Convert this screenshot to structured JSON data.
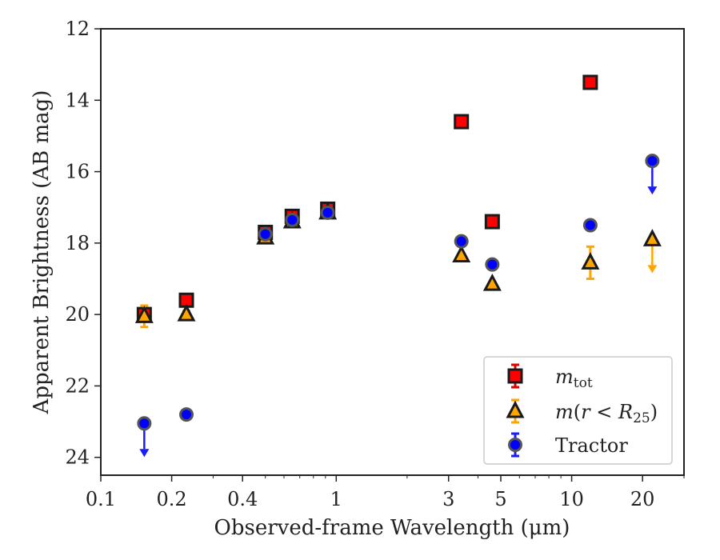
{
  "chart_data": {
    "type": "scatter",
    "title": "",
    "xlabel": "Observed-frame Wavelength (μm)",
    "ylabel": "Apparent Brightness (AB mag)",
    "xscale": "log",
    "xlim": [
      0.1,
      30
    ],
    "ylim": [
      24.5,
      12
    ],
    "y_inverted": true,
    "grid": false,
    "legend_position": "bottom-right",
    "x_ticks": [
      {
        "value": 0.1,
        "label": "0.1"
      },
      {
        "value": 0.2,
        "label": "0.2"
      },
      {
        "value": 0.4,
        "label": "0.4"
      },
      {
        "value": 1,
        "label": "1"
      },
      {
        "value": 3,
        "label": "3"
      },
      {
        "value": 5,
        "label": "5"
      },
      {
        "value": 10,
        "label": "10"
      },
      {
        "value": 20,
        "label": "20"
      }
    ],
    "y_ticks": [
      {
        "value": 12,
        "label": "12"
      },
      {
        "value": 14,
        "label": "14"
      },
      {
        "value": 16,
        "label": "16"
      },
      {
        "value": 18,
        "label": "18"
      },
      {
        "value": 20,
        "label": "20"
      },
      {
        "value": 22,
        "label": "22"
      },
      {
        "value": 24,
        "label": "24"
      }
    ],
    "series": [
      {
        "name": "m_tot",
        "marker": "square",
        "color": "#ff0000",
        "error_color": "#e00000",
        "points": [
          {
            "x": 0.153,
            "y": 20.0,
            "err": 0.15
          },
          {
            "x": 0.231,
            "y": 19.6,
            "err": 0.1
          },
          {
            "x": 0.5,
            "y": 17.7,
            "err": 0.1
          },
          {
            "x": 0.65,
            "y": 17.25,
            "err": 0.1
          },
          {
            "x": 0.92,
            "y": 17.05,
            "err": 0.1
          },
          {
            "x": 3.4,
            "y": 14.6,
            "err": 0.05
          },
          {
            "x": 4.6,
            "y": 17.4,
            "err": 0.05
          },
          {
            "x": 12.0,
            "y": 13.5,
            "err": 0.05
          }
        ]
      },
      {
        "name": "m(r < R25)",
        "marker": "triangle",
        "color": "#ffa500",
        "error_color": "#ffa500",
        "points": [
          {
            "x": 0.153,
            "y": 20.05,
            "err": 0.3
          },
          {
            "x": 0.231,
            "y": 20.0,
            "err": 0.1
          },
          {
            "x": 0.5,
            "y": 17.85,
            "err": 0.05
          },
          {
            "x": 0.65,
            "y": 17.4,
            "err": 0.05
          },
          {
            "x": 0.92,
            "y": 17.15,
            "err": 0.05
          },
          {
            "x": 3.4,
            "y": 18.35,
            "err": 0.05
          },
          {
            "x": 4.6,
            "y": 19.15,
            "err": 0.05
          },
          {
            "x": 12.0,
            "y": 18.55,
            "err": 0.45
          },
          {
            "x": 22.0,
            "y": 17.9,
            "upper_limit": true
          }
        ]
      },
      {
        "name": "Tractor",
        "marker": "circle",
        "color": "#0000ff",
        "error_color": "#1a1aff",
        "points": [
          {
            "x": 0.153,
            "y": 23.05,
            "upper_limit": true
          },
          {
            "x": 0.231,
            "y": 22.8,
            "err": 0.05
          },
          {
            "x": 0.5,
            "y": 17.75,
            "err": 0.05
          },
          {
            "x": 0.65,
            "y": 17.35,
            "err": 0.05
          },
          {
            "x": 0.92,
            "y": 17.15,
            "err": 0.05
          },
          {
            "x": 3.4,
            "y": 17.95,
            "err": 0.05
          },
          {
            "x": 4.6,
            "y": 18.6,
            "err": 0.05
          },
          {
            "x": 12.0,
            "y": 17.5,
            "err": 0.05
          },
          {
            "x": 22.0,
            "y": 15.7,
            "upper_limit": true
          }
        ]
      }
    ]
  }
}
